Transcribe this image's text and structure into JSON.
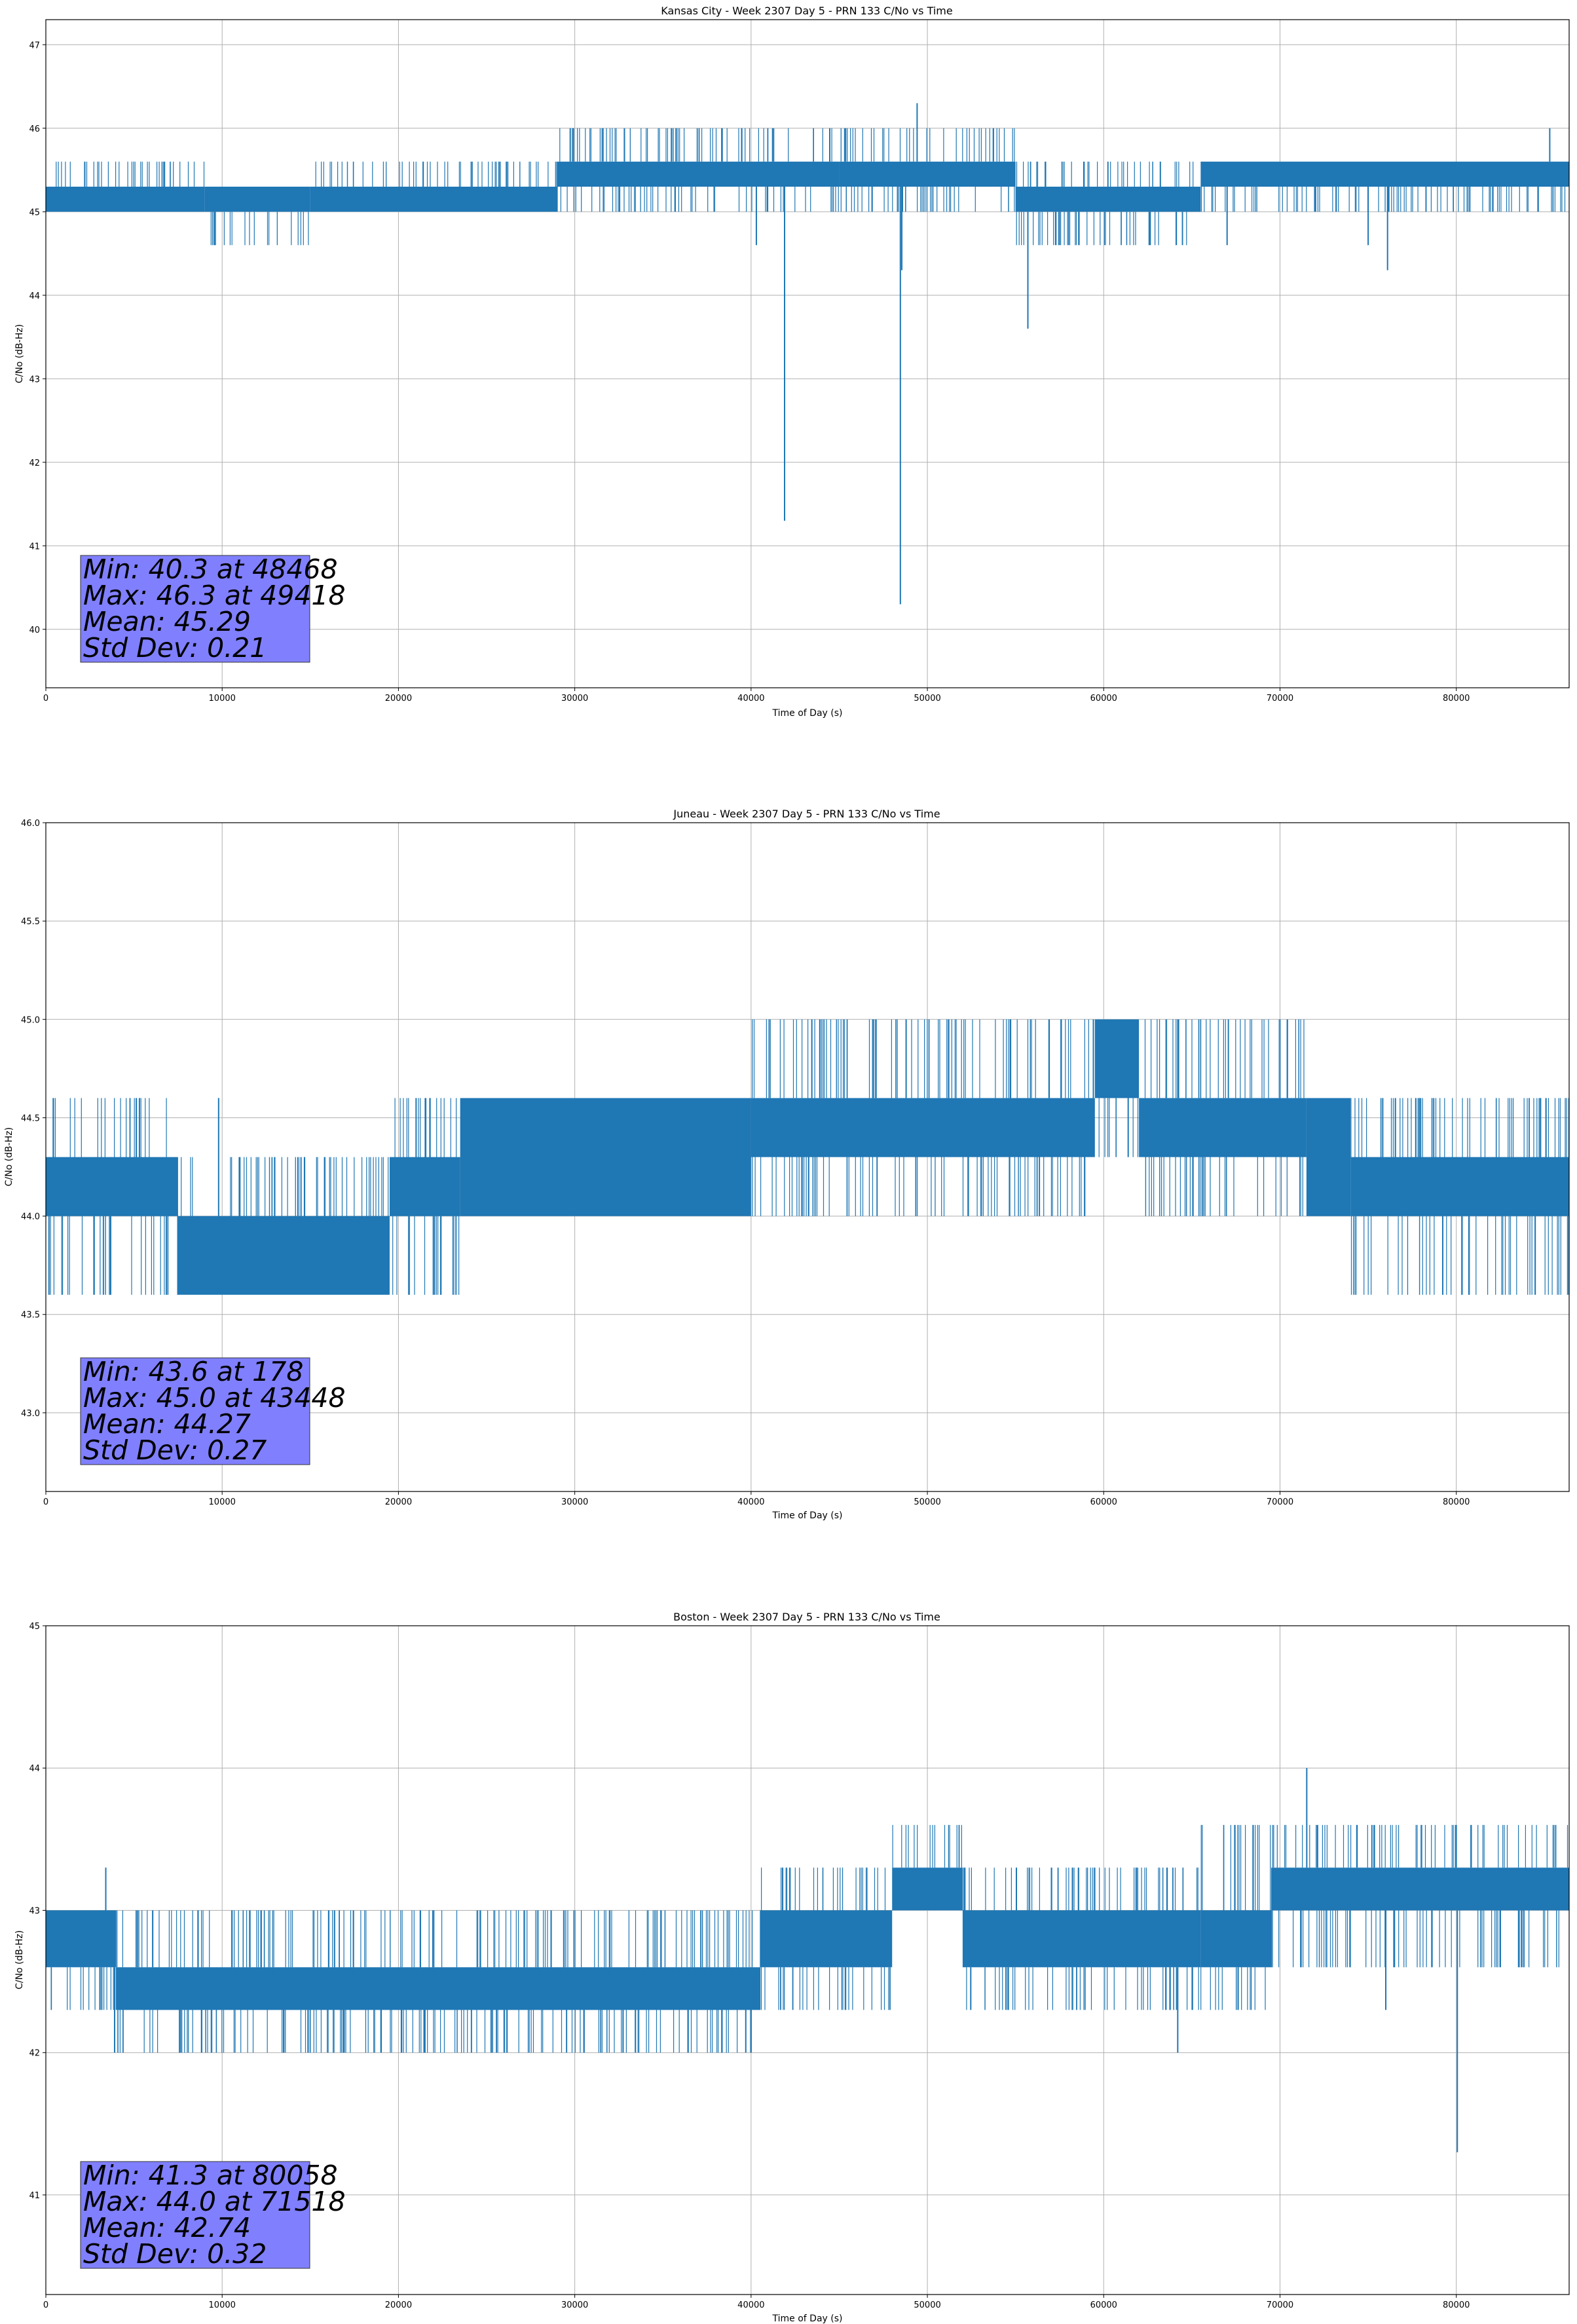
{
  "figure": {
    "line_color": "#1f77b4",
    "grid_color": "#b0b0b0",
    "stats_box_color": "#8080ff"
  },
  "chart_data": [
    {
      "type": "line",
      "title": "Kansas City - Week 2307 Day 5 - PRN 133 C/No vs Time",
      "xlabel": "Time of Day (s)",
      "ylabel": "C/No (dB-Hz)",
      "xlim": [
        0,
        86400
      ],
      "ylim": [
        39.3,
        47.3
      ],
      "xticks": [
        0,
        10000,
        20000,
        30000,
        40000,
        50000,
        60000,
        70000,
        80000
      ],
      "yticks": [
        40,
        41,
        42,
        43,
        44,
        45,
        46,
        47
      ],
      "grid": true,
      "stats": [
        "Min: 40.3 at 48468",
        "Max: 46.3 at 49418",
        "Mean: 45.29",
        "Std Dev: 0.21"
      ],
      "series": [
        {
          "values_description_only": false,
          "bands": [
            {
              "x": [
                0,
                9000
              ],
              "low": 45.0,
              "high": 45.3,
              "spikes_up": 45.6,
              "spikes_down": 45.0
            },
            {
              "x": [
                9000,
                15000
              ],
              "low": 45.0,
              "high": 45.3,
              "spikes_up": 45.3,
              "spikes_down": 44.6
            },
            {
              "x": [
                15000,
                29000
              ],
              "low": 45.0,
              "high": 45.3,
              "spikes_up": 45.6,
              "spikes_down": 45.0
            },
            {
              "x": [
                29000,
                45000
              ],
              "low": 45.3,
              "high": 45.6,
              "spikes_up": 46.0,
              "spikes_down": 45.0
            },
            {
              "x": [
                45000,
                55000
              ],
              "low": 45.3,
              "high": 45.6,
              "spikes_up": 46.0,
              "spikes_down": 45.0
            },
            {
              "x": [
                55000,
                65500
              ],
              "low": 45.0,
              "high": 45.3,
              "spikes_up": 45.6,
              "spikes_down": 44.6
            },
            {
              "x": [
                65500,
                86400
              ],
              "low": 45.3,
              "high": 45.6,
              "spikes_up": 45.6,
              "spikes_down": 45.0
            }
          ],
          "outliers": [
            [
              40300,
              44.6
            ],
            [
              41900,
              41.3
            ],
            [
              48468,
              40.3
            ],
            [
              48550,
              44.3
            ],
            [
              49418,
              46.3
            ],
            [
              55700,
              43.6
            ],
            [
              67000,
              44.6
            ],
            [
              75000,
              44.6
            ],
            [
              76100,
              44.3
            ],
            [
              85300,
              46.0
            ]
          ]
        }
      ]
    },
    {
      "type": "line",
      "title": "Juneau - Week 2307 Day 5 - PRN 133 C/No vs Time",
      "xlabel": "Time of Day (s)",
      "ylabel": "C/No (dB-Hz)",
      "xlim": [
        0,
        86400
      ],
      "ylim": [
        42.6,
        46.0
      ],
      "xticks": [
        0,
        10000,
        20000,
        30000,
        40000,
        50000,
        60000,
        70000,
        80000
      ],
      "yticks": [
        43.0,
        43.5,
        44.0,
        44.5,
        45.0,
        45.5,
        46.0
      ],
      "grid": true,
      "stats": [
        "Min: 43.6 at 178",
        "Max: 45.0 at 43448",
        "Mean: 44.27",
        "Std Dev: 0.27"
      ],
      "series": [
        {
          "values_description_only": false,
          "bands": [
            {
              "x": [
                0,
                7500
              ],
              "low": 44.0,
              "high": 44.3,
              "spikes_up": 44.6,
              "spikes_down": 43.6
            },
            {
              "x": [
                7500,
                19500
              ],
              "low": 43.6,
              "high": 44.0,
              "spikes_up": 44.3,
              "spikes_down": 43.6
            },
            {
              "x": [
                19500,
                23500
              ],
              "low": 44.0,
              "high": 44.3,
              "spikes_up": 44.6,
              "spikes_down": 43.6
            },
            {
              "x": [
                23500,
                40000
              ],
              "low": 44.0,
              "high": 44.6,
              "spikes_up": 44.6,
              "spikes_down": 44.0
            },
            {
              "x": [
                40000,
                59500
              ],
              "low": 44.3,
              "high": 44.6,
              "spikes_up": 45.0,
              "spikes_down": 44.0
            },
            {
              "x": [
                59500,
                62000
              ],
              "low": 44.6,
              "high": 45.0,
              "spikes_up": 45.0,
              "spikes_down": 44.3
            },
            {
              "x": [
                62000,
                71500
              ],
              "low": 44.3,
              "high": 44.6,
              "spikes_up": 45.0,
              "spikes_down": 44.0
            },
            {
              "x": [
                71500,
                74000
              ],
              "low": 44.0,
              "high": 44.6,
              "spikes_up": 44.6,
              "spikes_down": 44.0
            },
            {
              "x": [
                74000,
                86400
              ],
              "low": 44.0,
              "high": 44.3,
              "spikes_up": 44.6,
              "spikes_down": 43.6
            }
          ],
          "outliers": [
            [
              178,
              43.6
            ],
            [
              9800,
              44.6
            ],
            [
              21000,
              44.6
            ],
            [
              23100,
              43.6
            ],
            [
              43448,
              45.0
            ],
            [
              54700,
              45.0
            ]
          ]
        }
      ]
    },
    {
      "type": "line",
      "title": "Boston - Week 2307 Day 5 - PRN 133 C/No vs Time",
      "xlabel": "Time of Day (s)",
      "ylabel": "C/No (dB-Hz)",
      "xlim": [
        0,
        86400
      ],
      "ylim": [
        40.3,
        45.0
      ],
      "xticks": [
        0,
        10000,
        20000,
        30000,
        40000,
        50000,
        60000,
        70000,
        80000
      ],
      "yticks": [
        41,
        42,
        43,
        44,
        45
      ],
      "grid": true,
      "stats": [
        "Min: 41.3 at 80058",
        "Max: 44.0 at 71518",
        "Mean: 42.74",
        "Std Dev: 0.32"
      ],
      "series": [
        {
          "values_description_only": false,
          "bands": [
            {
              "x": [
                0,
                4000
              ],
              "low": 42.6,
              "high": 43.0,
              "spikes_up": 43.0,
              "spikes_down": 42.3
            },
            {
              "x": [
                4000,
                40500
              ],
              "low": 42.3,
              "high": 42.6,
              "spikes_up": 43.0,
              "spikes_down": 42.0
            },
            {
              "x": [
                40500,
                48000
              ],
              "low": 42.6,
              "high": 43.0,
              "spikes_up": 43.3,
              "spikes_down": 42.3
            },
            {
              "x": [
                48000,
                52000
              ],
              "low": 43.0,
              "high": 43.3,
              "spikes_up": 43.6,
              "spikes_down": 43.0
            },
            {
              "x": [
                52000,
                65500
              ],
              "low": 42.6,
              "high": 43.0,
              "spikes_up": 43.3,
              "spikes_down": 42.3
            },
            {
              "x": [
                65500,
                69500
              ],
              "low": 42.6,
              "high": 43.0,
              "spikes_up": 43.6,
              "spikes_down": 42.3
            },
            {
              "x": [
                69500,
                86400
              ],
              "low": 43.0,
              "high": 43.3,
              "spikes_up": 43.6,
              "spikes_down": 42.6
            }
          ],
          "outliers": [
            [
              3400,
              43.3
            ],
            [
              3900,
              42.0
            ],
            [
              13500,
              42.0
            ],
            [
              39700,
              42.0
            ],
            [
              64200,
              42.0
            ],
            [
              71518,
              44.0
            ],
            [
              76000,
              42.3
            ],
            [
              80058,
              41.3
            ]
          ]
        }
      ]
    }
  ]
}
